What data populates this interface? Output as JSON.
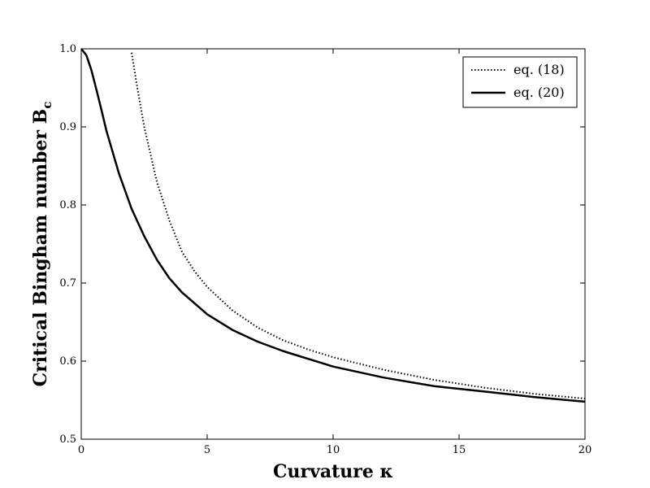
{
  "chart_data": {
    "type": "line",
    "xlabel": "Curvature κ",
    "ylabel": "Critical Bingham number B",
    "ylabel_sub": "c",
    "xlim": [
      0,
      20
    ],
    "ylim": [
      0.5,
      1.0
    ],
    "x_ticks": [
      0,
      5,
      10,
      15,
      20
    ],
    "x_tick_labels": [
      "0",
      "5",
      "10",
      "15",
      "20"
    ],
    "y_ticks": [
      0.5,
      0.6,
      0.7,
      0.8,
      0.9,
      1.0
    ],
    "y_tick_labels": [
      "0.5",
      "0.6",
      "0.7",
      "0.8",
      "0.9",
      "1.0"
    ],
    "grid": false,
    "legend_position": "top-right",
    "series": [
      {
        "name": "eq. (18)",
        "style": "dotted",
        "color": "#000000",
        "x": [
          2.0,
          2.2,
          2.5,
          3.0,
          3.5,
          4.0,
          4.5,
          5.0,
          6.0,
          7.0,
          8.0,
          9.0,
          10.0,
          12.0,
          14.0,
          16.0,
          18.0,
          20.0
        ],
        "y": [
          0.995,
          0.955,
          0.9,
          0.83,
          0.78,
          0.74,
          0.715,
          0.695,
          0.665,
          0.643,
          0.627,
          0.615,
          0.605,
          0.589,
          0.576,
          0.566,
          0.558,
          0.552
        ]
      },
      {
        "name": "eq. (20)",
        "style": "solid",
        "color": "#000000",
        "x": [
          0.0,
          0.2,
          0.4,
          0.6,
          0.8,
          1.0,
          1.5,
          2.0,
          2.5,
          3.0,
          3.5,
          4.0,
          5.0,
          6.0,
          7.0,
          8.0,
          10.0,
          12.0,
          14.0,
          16.0,
          18.0,
          20.0
        ],
        "y": [
          1.0,
          0.992,
          0.973,
          0.948,
          0.922,
          0.895,
          0.84,
          0.795,
          0.76,
          0.73,
          0.706,
          0.688,
          0.66,
          0.64,
          0.625,
          0.613,
          0.593,
          0.579,
          0.568,
          0.561,
          0.554,
          0.548
        ]
      }
    ]
  }
}
